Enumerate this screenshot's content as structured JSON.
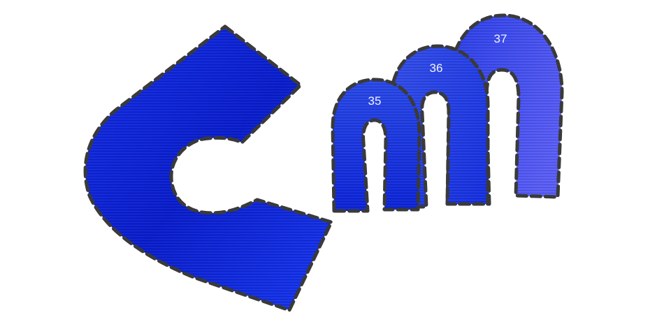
{
  "pieces": {
    "c_shape": {
      "fill_dark": "#0a1fd0",
      "fill_light": "#1c39f0"
    },
    "arches": [
      {
        "label": "35",
        "fill_top": "#2a4ae8",
        "fill_bottom": "#0d25d8"
      },
      {
        "label": "36",
        "fill_top": "#3550ea",
        "fill_bottom": "#1530e0"
      },
      {
        "label": "37",
        "fill_top": "#4d58f2",
        "fill_bottom": "#2237e6"
      }
    ]
  },
  "outline_color": "#3a3a3a",
  "background_color": "#ffffff"
}
